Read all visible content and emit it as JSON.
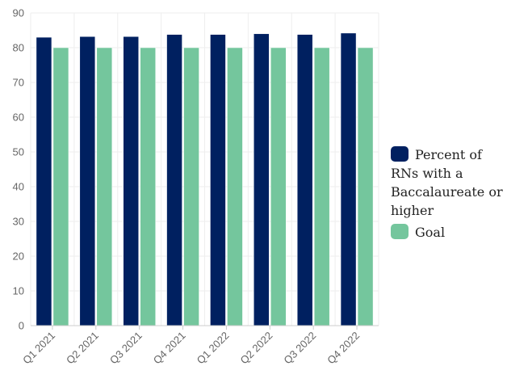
{
  "chart_data": {
    "type": "bar",
    "categories": [
      "Q1 2021",
      "Q2 2021",
      "Q3 2021",
      "Q4 2021",
      "Q1 2022",
      "Q2 2022",
      "Q3 2022",
      "Q4 2022"
    ],
    "series": [
      {
        "name": "Percent of RNs with a Baccalaureate or higher",
        "color": "#002060",
        "values": [
          83,
          83.2,
          83.2,
          83.8,
          83.8,
          84,
          83.8,
          84.2
        ]
      },
      {
        "name": "Goal",
        "color": "#74c69d",
        "values": [
          80,
          80,
          80,
          80,
          80,
          80,
          80,
          80
        ]
      }
    ],
    "ylim": [
      0,
      90
    ],
    "yticks": [
      0,
      10,
      20,
      30,
      40,
      50,
      60,
      70,
      80,
      90
    ],
    "grid": true,
    "legend_position": "right",
    "title": "",
    "xlabel": "",
    "ylabel": ""
  }
}
